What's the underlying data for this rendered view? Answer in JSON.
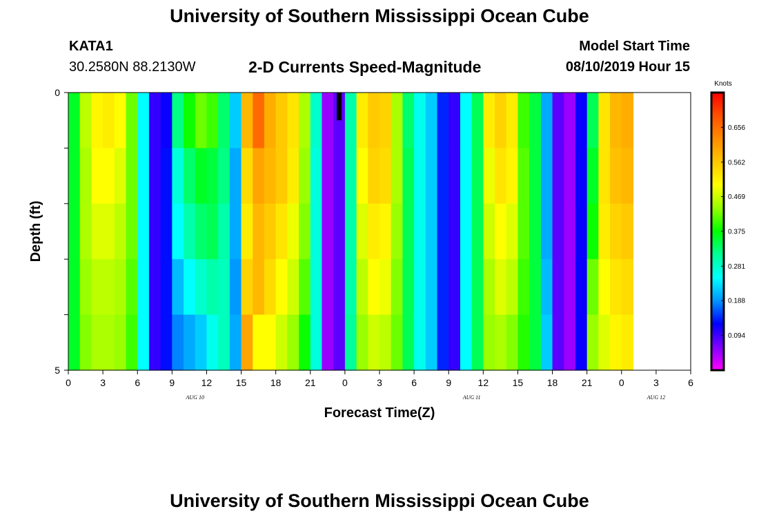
{
  "page": {
    "title_top": "University of Southern Mississippi Ocean Cube",
    "title_bottom": "University of Southern Mississippi Ocean Cube",
    "station_id": "KATA1",
    "station_coords": "30.2580N 88.2130W",
    "model_label": "Model Start Time",
    "model_time": "08/10/2019 Hour 15"
  },
  "chart_data": {
    "type": "heatmap",
    "title": "2-D Currents Speed-Magnitude",
    "xlabel": "Forecast Time(Z)",
    "ylabel": "Depth (ft)",
    "y_tick_labels": [
      "0",
      "5"
    ],
    "ylim": [
      0,
      5
    ],
    "x_tick_labels": [
      "0",
      "3",
      "6",
      "9",
      "12",
      "15",
      "18",
      "21",
      "0",
      "3",
      "6",
      "9",
      "12",
      "15",
      "18",
      "21",
      "0",
      "3",
      "6"
    ],
    "x_date_labels": [
      {
        "text": "AUG 10",
        "at_hour": 11
      },
      {
        "text": "AUG 11",
        "at_hour": 35
      },
      {
        "text": "AUG 12",
        "at_hour": 51
      }
    ],
    "colorbar": {
      "units": "Knots",
      "tick_labels": [
        "0.656",
        "0.562",
        "0.469",
        "0.375",
        "0.281",
        "0.188",
        "0.094"
      ],
      "tick_values": [
        0.656,
        0.562,
        0.469,
        0.375,
        0.281,
        0.188,
        0.094
      ],
      "range": [
        0.0,
        0.75
      ],
      "colors": [
        "#ff00ff",
        "#8000ff",
        "#0000ff",
        "#0096ff",
        "#00ffff",
        "#00ff96",
        "#00ff00",
        "#96ff00",
        "#ffff00",
        "#ffc800",
        "#ff8c00",
        "#ff5000",
        "#ff0000"
      ]
    },
    "x_hours_count": 54,
    "depth_rows": 5,
    "columns": [
      {
        "hour": 0,
        "values": [
          0.36,
          0.36,
          0.36,
          0.36,
          0.36
        ]
      },
      {
        "hour": 1,
        "values": [
          0.46,
          0.45,
          0.45,
          0.44,
          0.43
        ]
      },
      {
        "hour": 2,
        "values": [
          0.51,
          0.5,
          0.48,
          0.46,
          0.45
        ]
      },
      {
        "hour": 3,
        "values": [
          0.52,
          0.5,
          0.48,
          0.46,
          0.45
        ]
      },
      {
        "hour": 4,
        "values": [
          0.5,
          0.48,
          0.46,
          0.45,
          0.44
        ]
      },
      {
        "hour": 5,
        "values": [
          0.42,
          0.42,
          0.42,
          0.41,
          0.4
        ]
      },
      {
        "hour": 6,
        "values": [
          0.25,
          0.25,
          0.25,
          0.25,
          0.25
        ]
      },
      {
        "hour": 7,
        "values": [
          0.1,
          0.1,
          0.1,
          0.1,
          0.1
        ]
      },
      {
        "hour": 8,
        "values": [
          0.12,
          0.13,
          0.13,
          0.13,
          0.13
        ]
      },
      {
        "hour": 9,
        "values": [
          0.32,
          0.27,
          0.25,
          0.21,
          0.18
        ]
      },
      {
        "hour": 10,
        "values": [
          0.38,
          0.33,
          0.3,
          0.25,
          0.2
        ]
      },
      {
        "hour": 11,
        "values": [
          0.42,
          0.36,
          0.33,
          0.28,
          0.22
        ]
      },
      {
        "hour": 12,
        "values": [
          0.4,
          0.35,
          0.34,
          0.3,
          0.26
        ]
      },
      {
        "hour": 13,
        "values": [
          0.33,
          0.32,
          0.3,
          0.29,
          0.29
        ]
      },
      {
        "hour": 14,
        "values": [
          0.22,
          0.2,
          0.2,
          0.19,
          0.2
        ]
      },
      {
        "hour": 15,
        "values": [
          0.58,
          0.54,
          0.52,
          0.55,
          0.6
        ]
      },
      {
        "hour": 16,
        "values": [
          0.66,
          0.6,
          0.58,
          0.58,
          0.5
        ]
      },
      {
        "hour": 17,
        "values": [
          0.59,
          0.58,
          0.56,
          0.54,
          0.5
        ]
      },
      {
        "hour": 18,
        "values": [
          0.56,
          0.56,
          0.53,
          0.5,
          0.47
        ]
      },
      {
        "hour": 19,
        "values": [
          0.53,
          0.52,
          0.49,
          0.47,
          0.44
        ]
      },
      {
        "hour": 20,
        "values": [
          0.45,
          0.44,
          0.43,
          0.41,
          0.38
        ]
      },
      {
        "hour": 21,
        "values": [
          0.28,
          0.27,
          0.27,
          0.27,
          0.27
        ]
      },
      {
        "hour": 22,
        "values": [
          0.05,
          0.05,
          0.05,
          0.05,
          0.05
        ]
      },
      {
        "hour": 23,
        "values": [
          0.08,
          0.08,
          0.08,
          0.08,
          0.08
        ]
      },
      {
        "hour": 24,
        "values": [
          0.3,
          0.3,
          0.3,
          0.3,
          0.31
        ]
      },
      {
        "hour": 25,
        "values": [
          0.52,
          0.5,
          0.48,
          0.46,
          0.44
        ]
      },
      {
        "hour": 26,
        "values": [
          0.56,
          0.55,
          0.52,
          0.5,
          0.47
        ]
      },
      {
        "hour": 27,
        "values": [
          0.55,
          0.54,
          0.51,
          0.49,
          0.46
        ]
      },
      {
        "hour": 28,
        "values": [
          0.45,
          0.45,
          0.44,
          0.43,
          0.42
        ]
      },
      {
        "hour": 29,
        "values": [
          0.33,
          0.34,
          0.34,
          0.34,
          0.34
        ]
      },
      {
        "hour": 30,
        "values": [
          0.26,
          0.26,
          0.26,
          0.26,
          0.26
        ]
      },
      {
        "hour": 31,
        "values": [
          0.22,
          0.22,
          0.22,
          0.22,
          0.22
        ]
      },
      {
        "hour": 32,
        "values": [
          0.14,
          0.14,
          0.14,
          0.14,
          0.14
        ]
      },
      {
        "hour": 33,
        "values": [
          0.1,
          0.1,
          0.1,
          0.1,
          0.1
        ]
      },
      {
        "hour": 34,
        "values": [
          0.25,
          0.25,
          0.25,
          0.25,
          0.25
        ]
      },
      {
        "hour": 35,
        "values": [
          0.34,
          0.34,
          0.34,
          0.34,
          0.34
        ]
      },
      {
        "hour": 36,
        "values": [
          0.52,
          0.49,
          0.47,
          0.45,
          0.44
        ]
      },
      {
        "hour": 37,
        "values": [
          0.55,
          0.53,
          0.5,
          0.48,
          0.45
        ]
      },
      {
        "hour": 38,
        "values": [
          0.52,
          0.51,
          0.48,
          0.46,
          0.43
        ]
      },
      {
        "hour": 39,
        "values": [
          0.4,
          0.41,
          0.41,
          0.4,
          0.39
        ]
      },
      {
        "hour": 40,
        "values": [
          0.35,
          0.35,
          0.35,
          0.35,
          0.35
        ]
      },
      {
        "hour": 41,
        "values": [
          0.2,
          0.2,
          0.2,
          0.21,
          0.22
        ]
      },
      {
        "hour": 42,
        "values": [
          0.08,
          0.08,
          0.08,
          0.08,
          0.08
        ]
      },
      {
        "hour": 43,
        "values": [
          0.05,
          0.05,
          0.05,
          0.05,
          0.05
        ]
      },
      {
        "hour": 44,
        "values": [
          0.12,
          0.12,
          0.12,
          0.12,
          0.12
        ]
      },
      {
        "hour": 45,
        "values": [
          0.34,
          0.36,
          0.38,
          0.42,
          0.44
        ]
      },
      {
        "hour": 46,
        "values": [
          0.53,
          0.53,
          0.52,
          0.5,
          0.48
        ]
      },
      {
        "hour": 47,
        "values": [
          0.58,
          0.57,
          0.55,
          0.53,
          0.51
        ]
      },
      {
        "hour": 48,
        "values": [
          0.59,
          0.58,
          0.56,
          0.54,
          0.52
        ]
      }
    ],
    "marker": {
      "hour": 23,
      "depth_from": 0,
      "depth_to": 0.5,
      "color": "#000000"
    }
  }
}
